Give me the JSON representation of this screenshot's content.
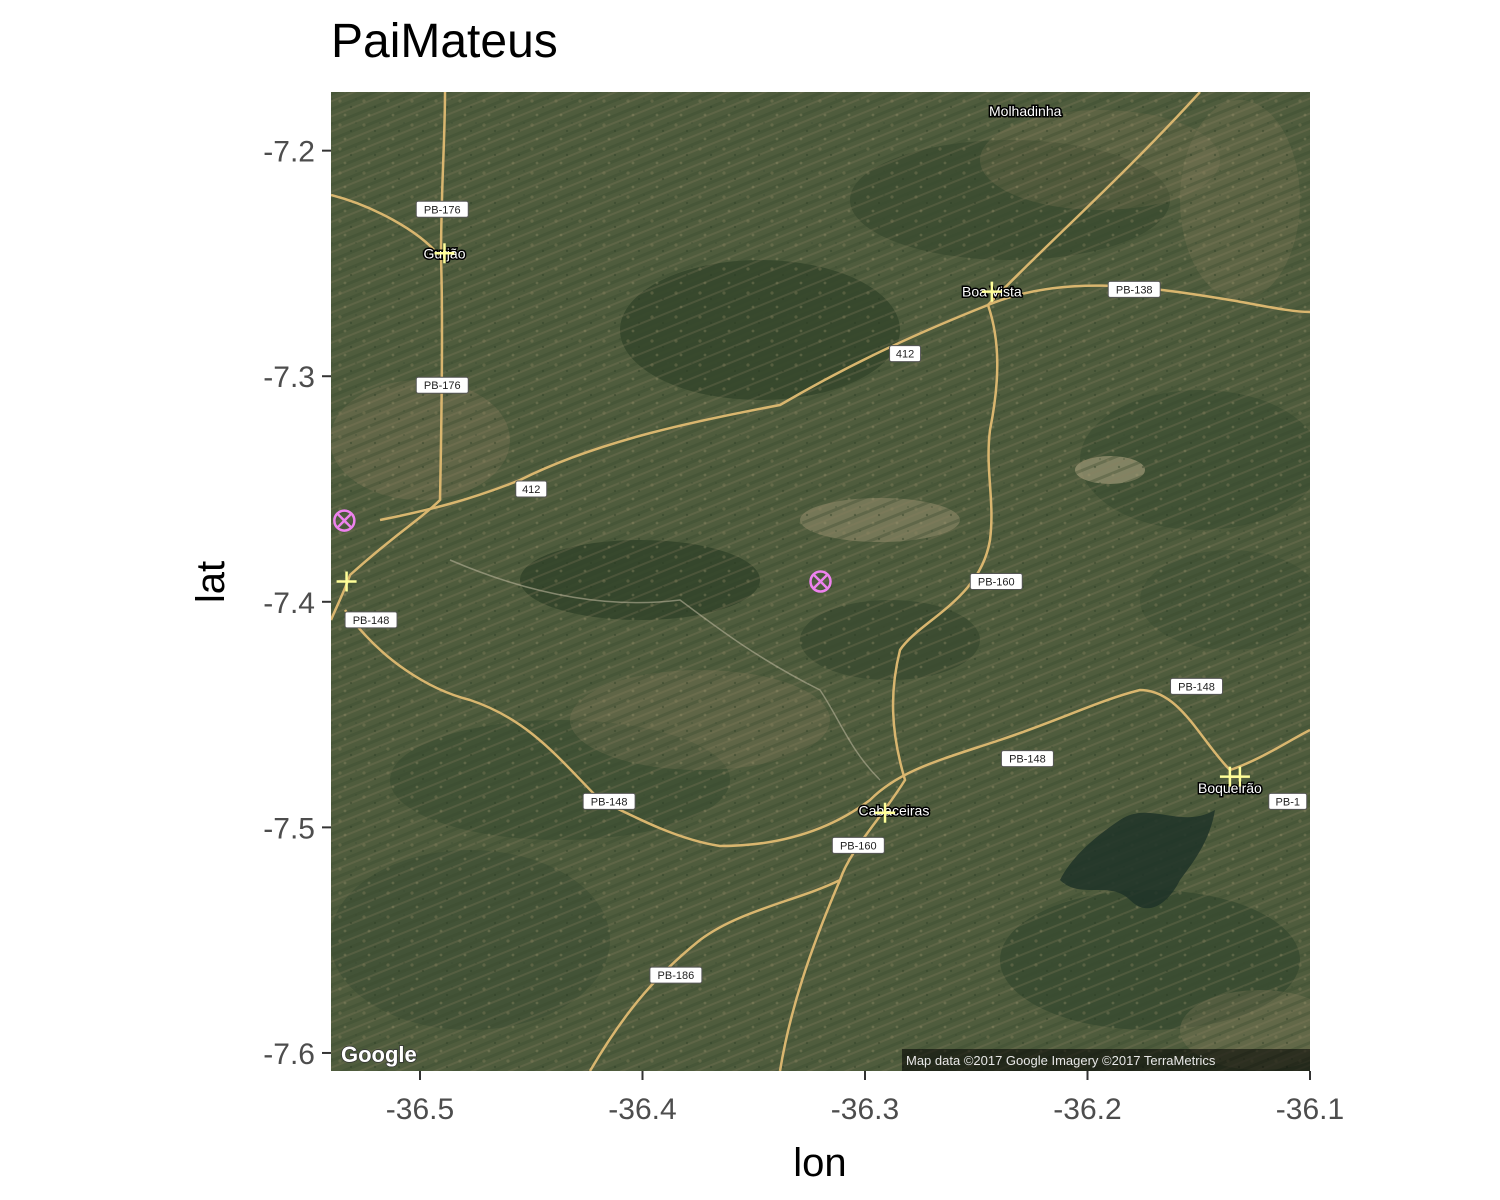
{
  "title": "PaiMateus",
  "axes": {
    "x_label": "lon",
    "y_label": "lat",
    "x_range": [
      -36.54,
      -36.1
    ],
    "y_range": [
      -7.608,
      -7.174
    ],
    "x_ticks": [
      {
        "value": -36.5,
        "label": "-36.5"
      },
      {
        "value": -36.4,
        "label": "-36.4"
      },
      {
        "value": -36.3,
        "label": "-36.3"
      },
      {
        "value": -36.2,
        "label": "-36.2"
      },
      {
        "value": -36.1,
        "label": "-36.1"
      }
    ],
    "y_ticks": [
      {
        "value": -7.2,
        "label": "-7.2"
      },
      {
        "value": -7.3,
        "label": "-7.3"
      },
      {
        "value": -7.4,
        "label": "-7.4"
      },
      {
        "value": -7.5,
        "label": "-7.5"
      },
      {
        "value": -7.6,
        "label": "-7.6"
      }
    ]
  },
  "basemap": {
    "provider_logo": "Google",
    "attribution": "Map data ©2017 Google  Imagery ©2017 TerraMetrics",
    "place_names": [
      {
        "name": "Molhadinha",
        "lon": -36.228,
        "lat": -7.1825
      },
      {
        "name": "Gurjão",
        "lon": -36.489,
        "lat": -7.2455
      },
      {
        "name": "Boa Vista",
        "lon": -36.243,
        "lat": -7.2625
      },
      {
        "name": "Cabaceiras",
        "lon": -36.287,
        "lat": -7.4925
      },
      {
        "name": "Boqueirão",
        "lon": -36.136,
        "lat": -7.4825
      }
    ],
    "road_shields": [
      {
        "label": "PB-176",
        "lon": -36.49,
        "lat": -7.226
      },
      {
        "label": "PB-176",
        "lon": -36.49,
        "lat": -7.304
      },
      {
        "label": "412",
        "lon": -36.282,
        "lat": -7.29
      },
      {
        "label": "412",
        "lon": -36.45,
        "lat": -7.35
      },
      {
        "label": "PB-138",
        "lon": -36.179,
        "lat": -7.2615
      },
      {
        "label": "PB-160",
        "lon": -36.241,
        "lat": -7.391
      },
      {
        "label": "PB-148",
        "lon": -36.522,
        "lat": -7.408
      },
      {
        "label": "PB-148",
        "lon": -36.151,
        "lat": -7.4375
      },
      {
        "label": "PB-148",
        "lon": -36.227,
        "lat": -7.4695
      },
      {
        "label": "PB-148",
        "lon": -36.415,
        "lat": -7.4885
      },
      {
        "label": "PB-160",
        "lon": -36.303,
        "lat": -7.508
      },
      {
        "label": "PB-186",
        "lon": -36.385,
        "lat": -7.5655
      },
      {
        "label": "PB-1",
        "lon": -36.11,
        "lat": -7.4885
      }
    ],
    "colors": {
      "terrain": "#4f5c3d",
      "road": "#d9b66f",
      "dark_veg": "#2f4128",
      "light_soil": "#9b8f6c",
      "water": "#1f3328"
    }
  },
  "points": {
    "cross_markers": {
      "color": "#ffff99",
      "shape": "plus",
      "coords": [
        {
          "lon": -36.489,
          "lat": -7.2455
        },
        {
          "lon": -36.243,
          "lat": -7.2625
        },
        {
          "lon": -36.533,
          "lat": -7.391
        },
        {
          "lon": -36.291,
          "lat": -7.4935
        },
        {
          "lon": -36.136,
          "lat": -7.4775
        },
        {
          "lon": -36.1315,
          "lat": -7.4775
        }
      ]
    },
    "circle_markers": {
      "color": "#ee82ee",
      "shape": "circle-cross",
      "coords": [
        {
          "lon": -36.534,
          "lat": -7.364
        },
        {
          "lon": -36.32,
          "lat": -7.391
        }
      ]
    }
  }
}
